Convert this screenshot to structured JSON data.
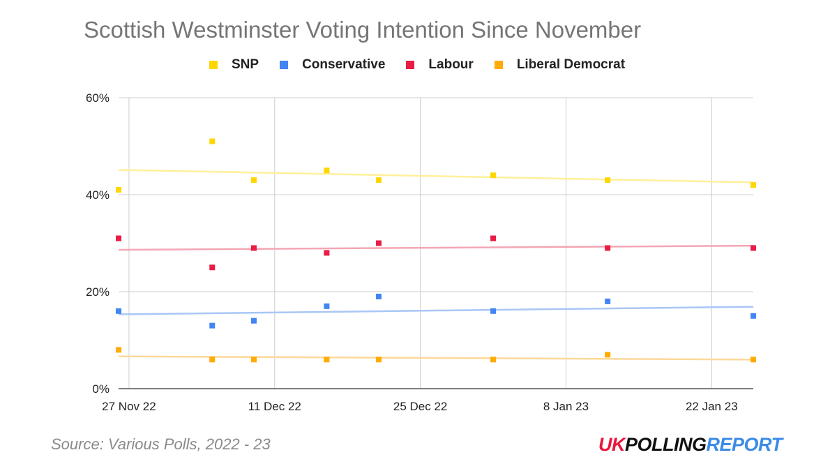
{
  "chart_data": {
    "type": "scatter",
    "title": "Scottish Westminster Voting Intention Since November",
    "y_tick_labels": [
      "0%",
      "20%",
      "40%",
      "60%"
    ],
    "y_ticks": [
      0,
      20,
      40,
      60
    ],
    "ylim": [
      0,
      60
    ],
    "x_tick_labels": [
      "27 Nov 22",
      "11 Dec 22",
      "25 Dec 22",
      "8 Jan 23",
      "22 Jan 23"
    ],
    "x_ticks": [
      "2022-11-27",
      "2022-12-11",
      "2022-12-25",
      "2023-01-08",
      "2023-01-22"
    ],
    "xlim": [
      "2022-11-26",
      "2023-01-26"
    ],
    "grid": true,
    "trendlines": true,
    "legend_position": "top",
    "series": [
      {
        "name": "SNP",
        "color": "#ffd600",
        "trend_color": "#fff09a",
        "points": [
          {
            "x": "2022-11-26",
            "y": 41
          },
          {
            "x": "2022-12-05",
            "y": 51
          },
          {
            "x": "2022-12-09",
            "y": 43
          },
          {
            "x": "2022-12-16",
            "y": 45
          },
          {
            "x": "2022-12-21",
            "y": 43
          },
          {
            "x": "2023-01-01",
            "y": 44
          },
          {
            "x": "2023-01-12",
            "y": 43
          },
          {
            "x": "2023-01-26",
            "y": 42
          }
        ]
      },
      {
        "name": "Conservative",
        "color": "#4285f4",
        "trend_color": "#a9c6f6",
        "points": [
          {
            "x": "2022-11-26",
            "y": 16
          },
          {
            "x": "2022-12-05",
            "y": 13
          },
          {
            "x": "2022-12-09",
            "y": 14
          },
          {
            "x": "2022-12-16",
            "y": 17
          },
          {
            "x": "2022-12-21",
            "y": 19
          },
          {
            "x": "2023-01-01",
            "y": 16
          },
          {
            "x": "2023-01-12",
            "y": 18
          },
          {
            "x": "2023-01-26",
            "y": 15
          }
        ]
      },
      {
        "name": "Labour",
        "color": "#ea1c45",
        "trend_color": "#f4a6b4",
        "points": [
          {
            "x": "2022-11-26",
            "y": 31
          },
          {
            "x": "2022-12-05",
            "y": 25
          },
          {
            "x": "2022-12-09",
            "y": 29
          },
          {
            "x": "2022-12-16",
            "y": 28
          },
          {
            "x": "2022-12-21",
            "y": 30
          },
          {
            "x": "2023-01-01",
            "y": 31
          },
          {
            "x": "2023-01-12",
            "y": 29
          },
          {
            "x": "2023-01-26",
            "y": 29
          }
        ]
      },
      {
        "name": "Liberal Democrat",
        "color": "#ffab00",
        "trend_color": "#fdd89a",
        "points": [
          {
            "x": "2022-11-26",
            "y": 8
          },
          {
            "x": "2022-12-05",
            "y": 6
          },
          {
            "x": "2022-12-09",
            "y": 6
          },
          {
            "x": "2022-12-16",
            "y": 6
          },
          {
            "x": "2022-12-21",
            "y": 6
          },
          {
            "x": "2023-01-01",
            "y": 6
          },
          {
            "x": "2023-01-12",
            "y": 7
          },
          {
            "x": "2023-01-26",
            "y": 6
          }
        ]
      }
    ]
  },
  "footer": {
    "source": "Source: Various Polls, 2022 - 23",
    "logo_uk": "UK",
    "logo_polling": "POLLING",
    "logo_report": "REPORT"
  }
}
